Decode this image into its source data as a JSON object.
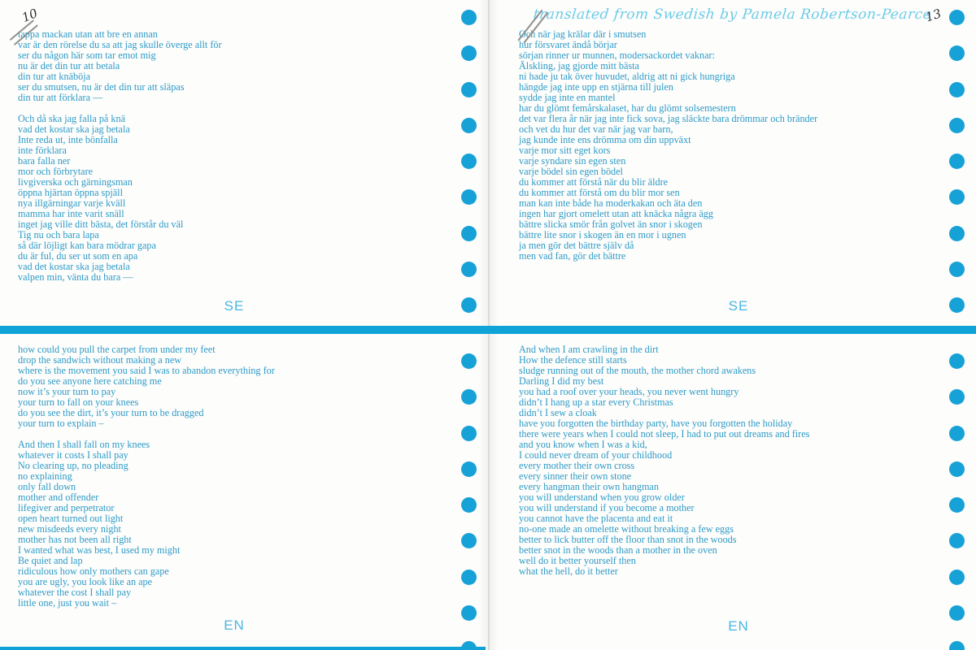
{
  "document": {
    "type": "bilingual-poetry-book-spread",
    "header": {
      "translator_credit": "translated from Swedish by Pamela Robertson-Pearce"
    },
    "annotations": {
      "left_page_number": "10",
      "right_page_number": "13"
    },
    "left_page": {
      "top": {
        "language_label": "SE",
        "lines": [
          "tappa mackan utan att bre en annan",
          "var är den rörelse du sa att jag skulle överge allt för",
          "ser du någon här som tar emot mig",
          "nu är det din tur att betala",
          "din tur att knäböja",
          "ser du smutsen, nu är det din tur att släpas",
          "din tur att förklara —",
          "",
          "Och då ska jag falla på knä",
          "vad det kostar ska jag betala",
          "Inte reda ut, inte bönfalla",
          "inte förklara",
          "bara falla ner",
          "mor och förbrytare",
          "livgiverska och gärningsman",
          "öppna hjärtan öppna spjäll",
          "nya illgärningar varje kväll",
          "mamma har inte varit snäll",
          "inget jag ville ditt bästa, det förstår du väl",
          "Tig nu och bara lapa",
          "så där löjligt kan bara mödrar gapa",
          "du är ful, du ser ut som en apa",
          "vad det kostar ska jag betala",
          "valpen min, vänta du bara —"
        ]
      },
      "bottom": {
        "language_label": "EN",
        "lines": [
          "how could you pull the carpet from under my feet",
          "drop the sandwich without making a new",
          "where is the movement you said I was to abandon everything for",
          "do you see anyone here catching me",
          "now it’s your turn to pay",
          "your turn to fall on your knees",
          "do you see the dirt, it’s your turn to be dragged",
          "your turn to explain –",
          "",
          "And then I shall fall on my knees",
          "whatever it costs I shall pay",
          "No clearing up, no pleading",
          "no explaining",
          "only fall down",
          "mother and offender",
          "lifegiver and perpetrator",
          "open heart turned out light",
          "new misdeeds every night",
          "mother has not been all right",
          "I wanted what was best, I used my might",
          "Be quiet and lap",
          "ridiculous how only mothers can gape",
          "you are ugly, you look like an ape",
          "whatever the cost I shall pay",
          "little one, just you wait –"
        ]
      }
    },
    "right_page": {
      "top": {
        "language_label": "SE",
        "lines": [
          "Och när jag krälar där i smutsen",
          "hur försvaret ändå börjar",
          "sörjan rinner ur munnen, modersackordet vaknar:",
          "Älskling, jag gjorde mitt bästa",
          "ni hade ju tak över huvudet, aldrig att ni gick hungriga",
          "hängde jag inte upp en stjärna till julen",
          "sydde jag inte en mantel",
          "har du glömt femårskalaset, har du glömt solsemestern",
          "det var flera år när jag inte fick sova, jag släckte bara drömmar och bränder",
          "och vet du hur det var när jag var barn,",
          "jag kunde inte ens drömma om din uppväxt",
          "varje mor sitt eget kors",
          "varje syndare sin egen sten",
          "varje bödel sin egen bödel",
          "du kommer att förstå när du blir äldre",
          "du kommer att förstå om du blir mor sen",
          "man kan inte både ha moderkakan och äta den",
          "ingen har gjort omelett utan att knäcka några ägg",
          "bättre slicka smör från golvet än snor i skogen",
          "bättre lite snor i skogen än en mor i ugnen",
          "ja men gör det bättre själv då",
          "men vad fan, gör det bättre"
        ]
      },
      "bottom": {
        "language_label": "EN",
        "lines": [
          "And when I am crawling in the dirt",
          "How the defence still starts",
          "sludge running out of the mouth, the mother chord awakens",
          "Darling I did my best",
          "you had a roof over your heads, you never went hungry",
          "didn’t I hang up a star every Christmas",
          "didn’t I sew a cloak",
          "have you forgotten the birthday party, have you forgotten the holiday",
          "there were years when I could not sleep, I had to put out dreams and fires",
          "and you know when I was a kid,",
          "I could never dream of your childhood",
          "every mother their own cross",
          "every sinner their own stone",
          "every hangman their own hangman",
          "you will understand when you grow older",
          "you will understand if you become a mother",
          "you cannot have the placenta and eat it",
          "no-one made an omelette without breaking a few eggs",
          "better to lick butter off the floor than snot in the woods",
          "better snot in the woods than a mother in the oven",
          "well do it better yourself then",
          "what the hell, do it better"
        ]
      }
    },
    "decorations": {
      "dot_icon": "filled-circle",
      "dots_per_column": 9,
      "colors": {
        "body_text": "#2d9ac8",
        "dot": "#17a2d7",
        "section_bar": "#10a3d8",
        "language_label": "#49b6e2",
        "header_script": "#6ccbe9",
        "page_gutter": "#dbdbd5",
        "pen_ink": "#2f2f33"
      }
    }
  }
}
